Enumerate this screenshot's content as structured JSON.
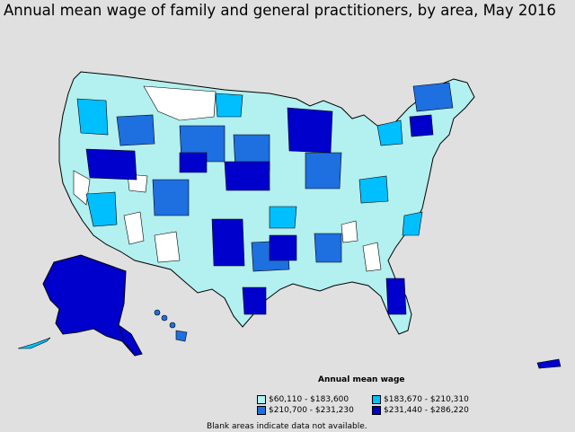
{
  "title": "Annual mean wage of family and general practitioners, by area, May 2016",
  "colors": {
    "background": "#e0e0e0",
    "blank": "#ffffff",
    "c1": "#b3f0f0",
    "c2": "#00bfff",
    "c3": "#1e6fe0",
    "c4": "#0000cc",
    "border": "#000000"
  },
  "legend": {
    "title": "Annual mean wage",
    "items": [
      {
        "label": "$60,110 - $183,600",
        "color": "#b3f0f0"
      },
      {
        "label": "$183,670 - $210,310",
        "color": "#00bfff"
      },
      {
        "label": "$210,700 - $231,230",
        "color": "#1e6fe0"
      },
      {
        "label": "$231,440 - $286,220",
        "color": "#0000cc"
      }
    ]
  },
  "note": "Blank areas indicate data not available."
}
